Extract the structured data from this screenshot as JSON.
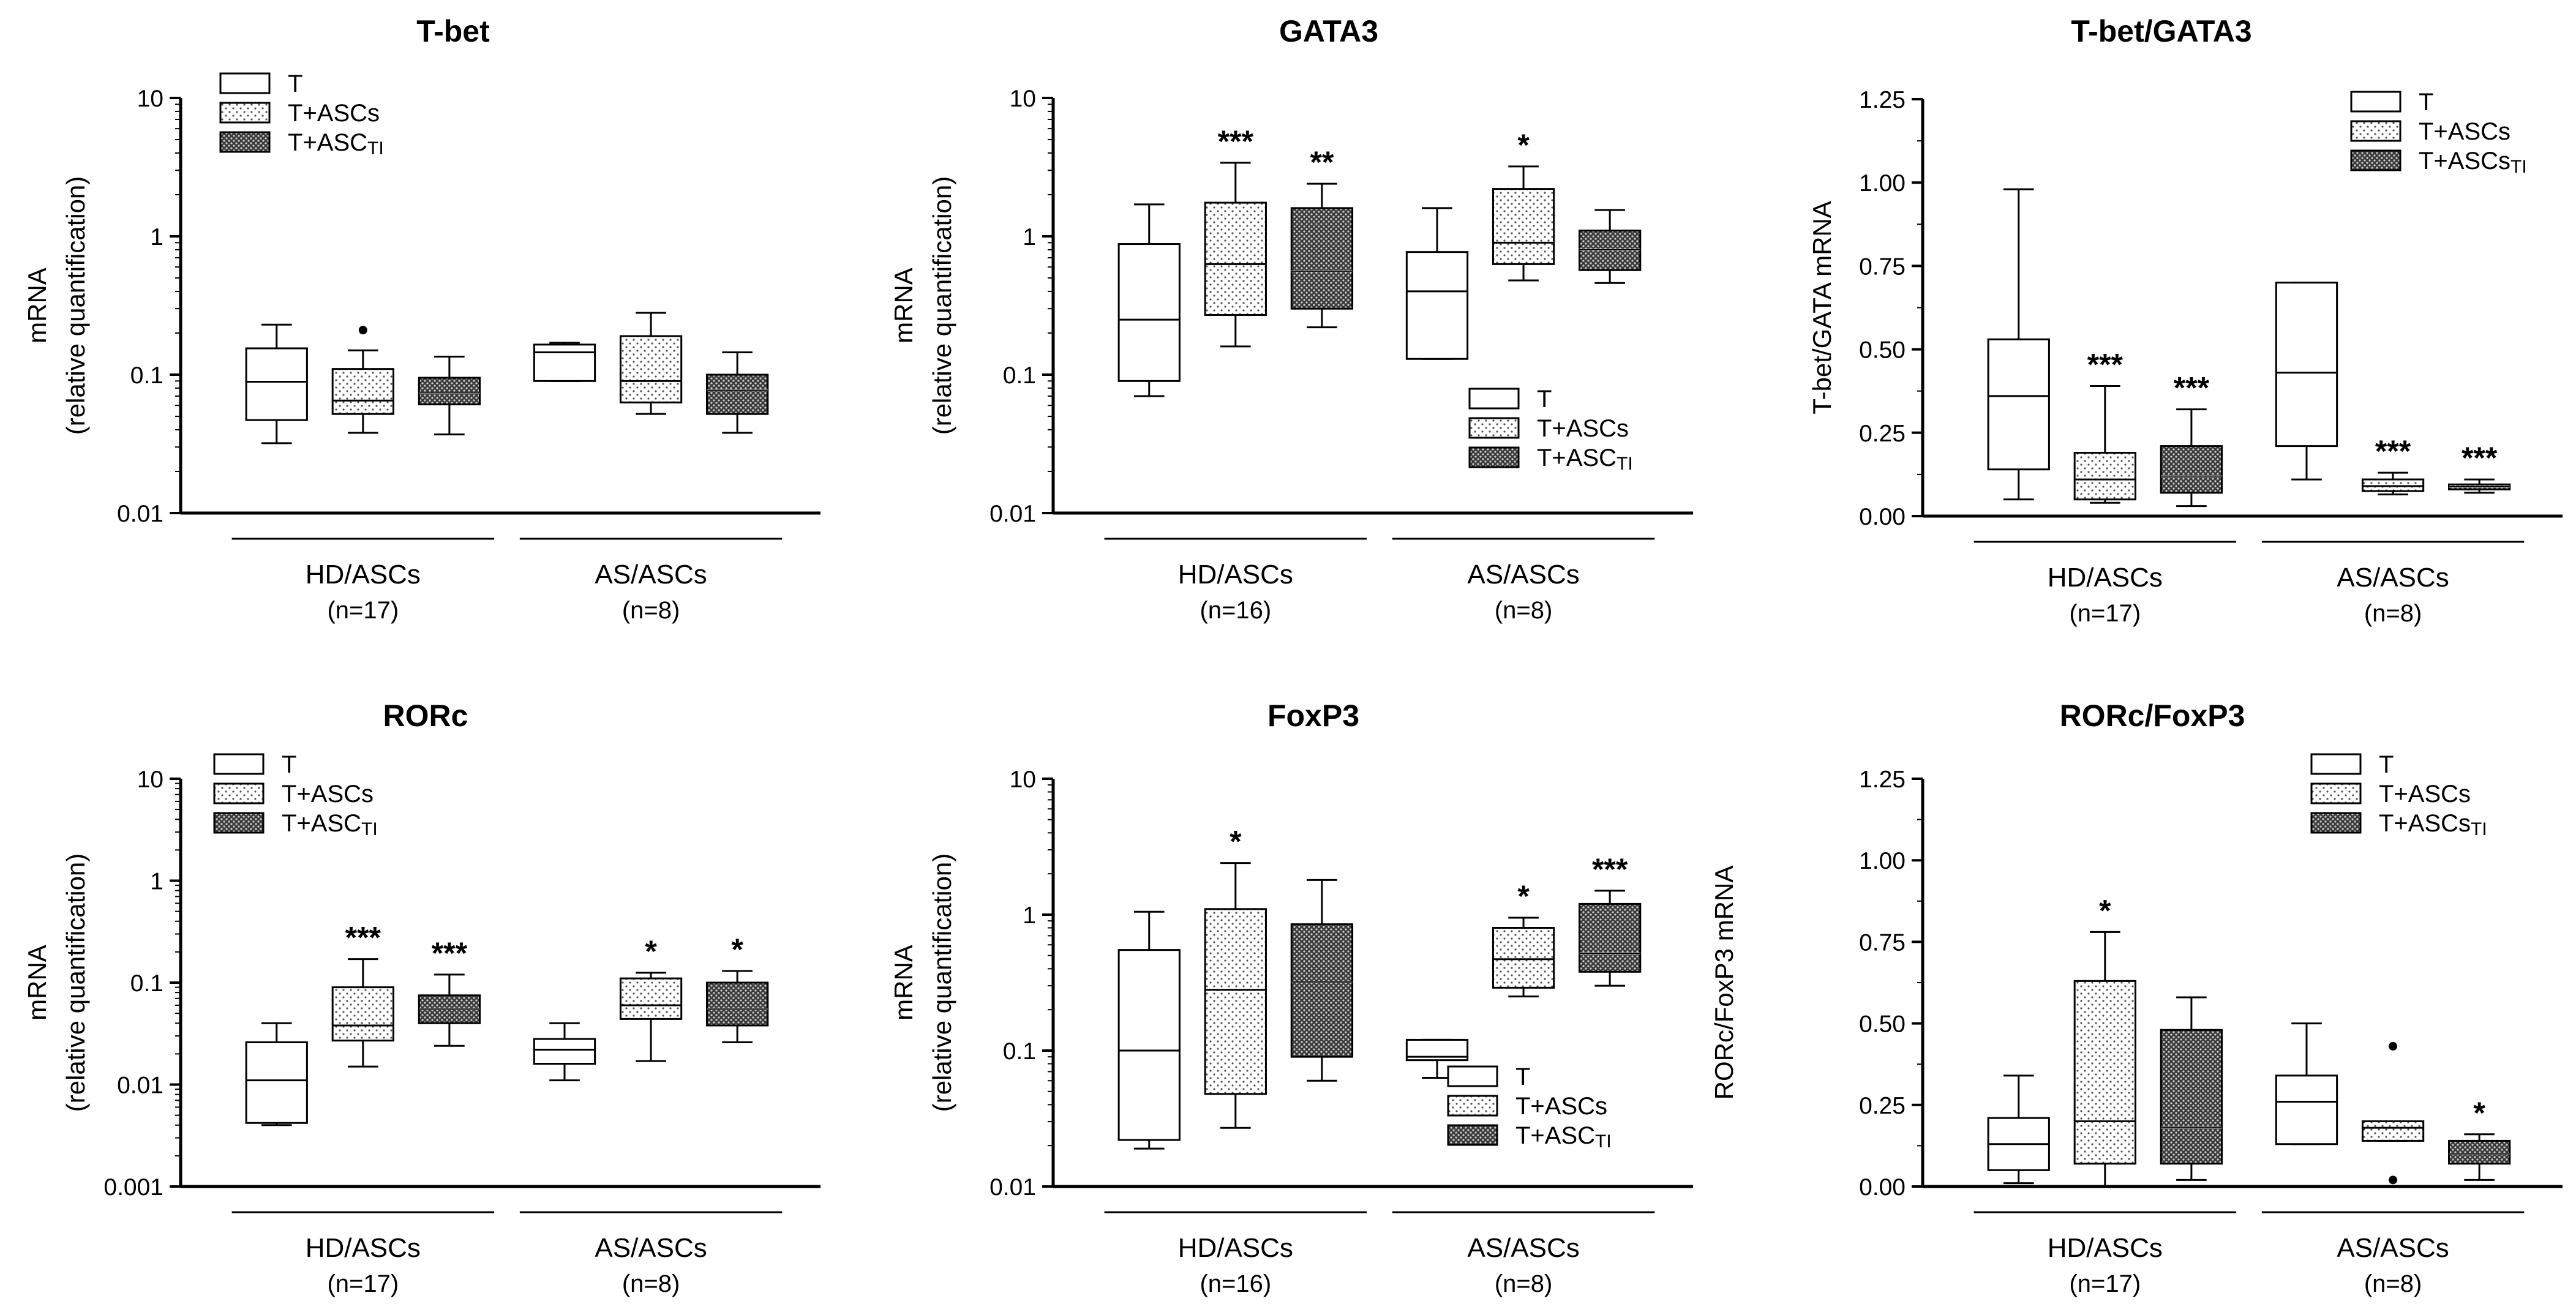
{
  "legend_labels": [
    "T",
    "T+ASCs",
    "T+ASCTI"
  ],
  "box_fills": [
    "#ffffff",
    "#eeeeee",
    "#555555"
  ],
  "chart_data": [
    {
      "id": "tbet",
      "type": "box",
      "scale": "log",
      "title": "T-bet",
      "ylabel": "mRNA",
      "ylabel2": "(relative quantification)",
      "ylim": [
        0.01,
        10
      ],
      "ticks": [
        0.01,
        0.1,
        1,
        10
      ],
      "tick_labels": [
        "0.01",
        "0.1",
        "1",
        "10"
      ],
      "groups": [
        {
          "name": "HD/ASCs",
          "n": "(n=17)"
        },
        {
          "name": "AS/ASCs",
          "n": "(n=8)"
        }
      ],
      "legend_labels": [
        "T",
        "T+ASCs",
        "T+ASCTI"
      ],
      "boxes": [
        {
          "group": 0,
          "series": 0,
          "min": 0.032,
          "q1": 0.047,
          "median": 0.089,
          "q3": 0.155,
          "max": 0.23,
          "sig": ""
        },
        {
          "group": 0,
          "series": 1,
          "min": 0.038,
          "q1": 0.052,
          "median": 0.065,
          "q3": 0.11,
          "max": 0.15,
          "outliers": [
            0.21
          ],
          "sig": ""
        },
        {
          "group": 0,
          "series": 2,
          "min": 0.037,
          "q1": 0.061,
          "median": 0.074,
          "q3": 0.095,
          "max": 0.135,
          "sig": ""
        },
        {
          "group": 1,
          "series": 0,
          "min": 0.09,
          "q1": 0.09,
          "median": 0.145,
          "q3": 0.165,
          "max": 0.17,
          "sig": ""
        },
        {
          "group": 1,
          "series": 1,
          "min": 0.052,
          "q1": 0.063,
          "median": 0.09,
          "q3": 0.19,
          "max": 0.28,
          "sig": ""
        },
        {
          "group": 1,
          "series": 2,
          "min": 0.038,
          "q1": 0.052,
          "median": 0.077,
          "q3": 0.1,
          "max": 0.145,
          "sig": ""
        }
      ]
    },
    {
      "id": "gata3",
      "type": "box",
      "scale": "log",
      "title": "GATA3",
      "ylabel": "mRNA",
      "ylabel2": "(relative quantification)",
      "ylim": [
        0.01,
        10
      ],
      "ticks": [
        0.01,
        0.1,
        1,
        10
      ],
      "tick_labels": [
        "0.01",
        "0.1",
        "1",
        "10"
      ],
      "groups": [
        {
          "name": "HD/ASCs",
          "n": "(n=16)"
        },
        {
          "name": "AS/ASCs",
          "n": "(n=8)"
        }
      ],
      "legend_labels": [
        "T",
        "T+ASCs",
        "T+ASCTI"
      ],
      "boxes": [
        {
          "group": 0,
          "series": 0,
          "min": 0.07,
          "q1": 0.09,
          "median": 0.25,
          "q3": 0.88,
          "max": 1.7,
          "sig": ""
        },
        {
          "group": 0,
          "series": 1,
          "min": 0.16,
          "q1": 0.27,
          "median": 0.63,
          "q3": 1.75,
          "max": 3.4,
          "sig": "***"
        },
        {
          "group": 0,
          "series": 2,
          "min": 0.22,
          "q1": 0.3,
          "median": 0.56,
          "q3": 1.6,
          "max": 2.4,
          "sig": "**"
        },
        {
          "group": 1,
          "series": 0,
          "min": 0.13,
          "q1": 0.13,
          "median": 0.4,
          "q3": 0.77,
          "max": 1.6,
          "sig": ""
        },
        {
          "group": 1,
          "series": 1,
          "min": 0.48,
          "q1": 0.63,
          "median": 0.9,
          "q3": 2.2,
          "max": 3.2,
          "sig": "*"
        },
        {
          "group": 1,
          "series": 2,
          "min": 0.46,
          "q1": 0.57,
          "median": 0.8,
          "q3": 1.1,
          "max": 1.55,
          "sig": ""
        }
      ]
    },
    {
      "id": "tbet-gata3",
      "type": "box",
      "scale": "linear",
      "title": "T-bet/GATA3",
      "ylabel": "T-bet/GATA mRNA",
      "ylabel2": "",
      "ylim": [
        0,
        1.25
      ],
      "ticks": [
        0,
        0.25,
        0.5,
        0.75,
        1,
        1.25
      ],
      "tick_labels": [
        "0.00",
        "0.25",
        "0.50",
        "0.75",
        "1.00",
        "1.25"
      ],
      "groups": [
        {
          "name": "HD/ASCs",
          "n": "(n=17)"
        },
        {
          "name": "AS/ASCs",
          "n": "(n=8)"
        }
      ],
      "legend_labels": [
        "T",
        "T+ASCs",
        "T+ASCsTI"
      ],
      "boxes": [
        {
          "group": 0,
          "series": 0,
          "min": 0.05,
          "q1": 0.14,
          "median": 0.36,
          "q3": 0.53,
          "max": 0.98,
          "sig": ""
        },
        {
          "group": 0,
          "series": 1,
          "min": 0.04,
          "q1": 0.05,
          "median": 0.11,
          "q3": 0.19,
          "max": 0.39,
          "sig": "***"
        },
        {
          "group": 0,
          "series": 2,
          "min": 0.03,
          "q1": 0.07,
          "median": 0.12,
          "q3": 0.21,
          "max": 0.32,
          "sig": "***"
        },
        {
          "group": 1,
          "series": 0,
          "min": 0.11,
          "q1": 0.21,
          "median": 0.43,
          "q3": 0.7,
          "max": 0.7,
          "sig": ""
        },
        {
          "group": 1,
          "series": 1,
          "min": 0.065,
          "q1": 0.075,
          "median": 0.09,
          "q3": 0.11,
          "max": 0.13,
          "sig": "***"
        },
        {
          "group": 1,
          "series": 2,
          "min": 0.07,
          "q1": 0.08,
          "median": 0.088,
          "q3": 0.095,
          "max": 0.11,
          "sig": "***"
        }
      ]
    },
    {
      "id": "rorc",
      "type": "box",
      "scale": "log",
      "title": "RORc",
      "ylabel": "mRNA",
      "ylabel2": "(relative quantification)",
      "ylim": [
        0.001,
        10
      ],
      "ticks": [
        0.001,
        0.01,
        0.1,
        1,
        10
      ],
      "tick_labels": [
        "0.001",
        "0.01",
        "0.1",
        "1",
        "10"
      ],
      "groups": [
        {
          "name": "HD/ASCs",
          "n": "(n=17)"
        },
        {
          "name": "AS/ASCs",
          "n": "(n=8)"
        }
      ],
      "legend_labels": [
        "T",
        "T+ASCs",
        "T+ASCTI"
      ],
      "boxes": [
        {
          "group": 0,
          "series": 0,
          "min": 0.004,
          "q1": 0.0042,
          "median": 0.011,
          "q3": 0.026,
          "max": 0.04,
          "sig": ""
        },
        {
          "group": 0,
          "series": 1,
          "min": 0.015,
          "q1": 0.027,
          "median": 0.038,
          "q3": 0.09,
          "max": 0.17,
          "sig": "***"
        },
        {
          "group": 0,
          "series": 2,
          "min": 0.024,
          "q1": 0.04,
          "median": 0.055,
          "q3": 0.075,
          "max": 0.12,
          "sig": "***"
        },
        {
          "group": 1,
          "series": 0,
          "min": 0.011,
          "q1": 0.016,
          "median": 0.022,
          "q3": 0.028,
          "max": 0.04,
          "sig": ""
        },
        {
          "group": 1,
          "series": 1,
          "min": 0.017,
          "q1": 0.044,
          "median": 0.06,
          "q3": 0.11,
          "max": 0.125,
          "sig": "*"
        },
        {
          "group": 1,
          "series": 2,
          "min": 0.026,
          "q1": 0.038,
          "median": 0.055,
          "q3": 0.1,
          "max": 0.13,
          "sig": "*"
        }
      ]
    },
    {
      "id": "foxp3",
      "type": "box",
      "scale": "log",
      "title": "FoxP3",
      "ylabel": "mRNA",
      "ylabel2": "(relative quantification)",
      "ylim": [
        0.01,
        10
      ],
      "ticks": [
        0.01,
        0.1,
        1,
        10
      ],
      "tick_labels": [
        "0.01",
        "0.1",
        "1",
        "10"
      ],
      "groups": [
        {
          "name": "HD/ASCs",
          "n": "(n=16)"
        },
        {
          "name": "AS/ASCs",
          "n": "(n=8)"
        }
      ],
      "legend_labels": [
        "T",
        "T+ASCs",
        "T+ASCTI"
      ],
      "boxes": [
        {
          "group": 0,
          "series": 0,
          "min": 0.019,
          "q1": 0.022,
          "median": 0.1,
          "q3": 0.55,
          "max": 1.05,
          "sig": ""
        },
        {
          "group": 0,
          "series": 1,
          "min": 0.027,
          "q1": 0.048,
          "median": 0.28,
          "q3": 1.1,
          "max": 2.4,
          "sig": "*"
        },
        {
          "group": 0,
          "series": 2,
          "min": 0.06,
          "q1": 0.09,
          "median": 0.32,
          "q3": 0.85,
          "max": 1.8,
          "sig": ""
        },
        {
          "group": 1,
          "series": 0,
          "min": 0.063,
          "q1": 0.085,
          "median": 0.09,
          "q3": 0.12,
          "max": 0.12,
          "sig": ""
        },
        {
          "group": 1,
          "series": 1,
          "min": 0.25,
          "q1": 0.29,
          "median": 0.47,
          "q3": 0.8,
          "max": 0.95,
          "sig": "*"
        },
        {
          "group": 1,
          "series": 2,
          "min": 0.3,
          "q1": 0.38,
          "median": 0.52,
          "q3": 1.2,
          "max": 1.5,
          "sig": "***"
        }
      ]
    },
    {
      "id": "rorc-foxp3",
      "type": "box",
      "scale": "linear",
      "title": "RORc/FoxP3",
      "ylabel": "RORc/FoxP3 mRNA",
      "ylabel2": "",
      "ylim": [
        0,
        1.25
      ],
      "ticks": [
        0,
        0.25,
        0.5,
        0.75,
        1,
        1.25
      ],
      "tick_labels": [
        "0.00",
        "0.25",
        "0.50",
        "0.75",
        "1.00",
        "1.25"
      ],
      "groups": [
        {
          "name": "HD/ASCs",
          "n": "(n=17)"
        },
        {
          "name": "AS/ASCs",
          "n": "(n=8)"
        }
      ],
      "legend_labels": [
        "T",
        "T+ASCs",
        "T+ASCsTI"
      ],
      "boxes": [
        {
          "group": 0,
          "series": 0,
          "min": 0.01,
          "q1": 0.05,
          "median": 0.13,
          "q3": 0.21,
          "max": 0.34,
          "sig": ""
        },
        {
          "group": 0,
          "series": 1,
          "min": 0.0,
          "q1": 0.07,
          "median": 0.2,
          "q3": 0.63,
          "max": 0.78,
          "sig": "*"
        },
        {
          "group": 0,
          "series": 2,
          "min": 0.02,
          "q1": 0.07,
          "median": 0.18,
          "q3": 0.48,
          "max": 0.58,
          "sig": ""
        },
        {
          "group": 1,
          "series": 0,
          "min": 0.13,
          "q1": 0.13,
          "median": 0.26,
          "q3": 0.34,
          "max": 0.5,
          "sig": ""
        },
        {
          "group": 1,
          "series": 1,
          "min": 0.14,
          "q1": 0.14,
          "median": 0.18,
          "q3": 0.2,
          "max": 0.2,
          "outliers": [
            0.43,
            0.02
          ],
          "sig": ""
        },
        {
          "group": 1,
          "series": 2,
          "min": 0.02,
          "q1": 0.07,
          "median": 0.1,
          "q3": 0.14,
          "max": 0.16,
          "sig": "*"
        }
      ]
    }
  ]
}
